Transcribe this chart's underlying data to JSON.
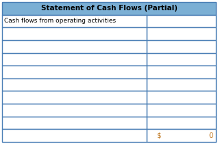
{
  "title": "Statement of Cash Flows (Partial)",
  "title_bg": "#7bafd4",
  "title_color": "#000000",
  "header_row_text": "Cash flows from operating activities",
  "num_data_rows": 9,
  "col_split": 0.675,
  "last_row_left": "$",
  "last_row_right": "0",
  "border_color": "#4a7eb5",
  "bg_color": "#ffffff",
  "text_color": "#000000",
  "last_row_border_color": "#4a7eb5",
  "font_size": 6.5,
  "title_font_size": 7.5,
  "fig_width": 3.18,
  "fig_height": 2.11,
  "dpi": 100
}
